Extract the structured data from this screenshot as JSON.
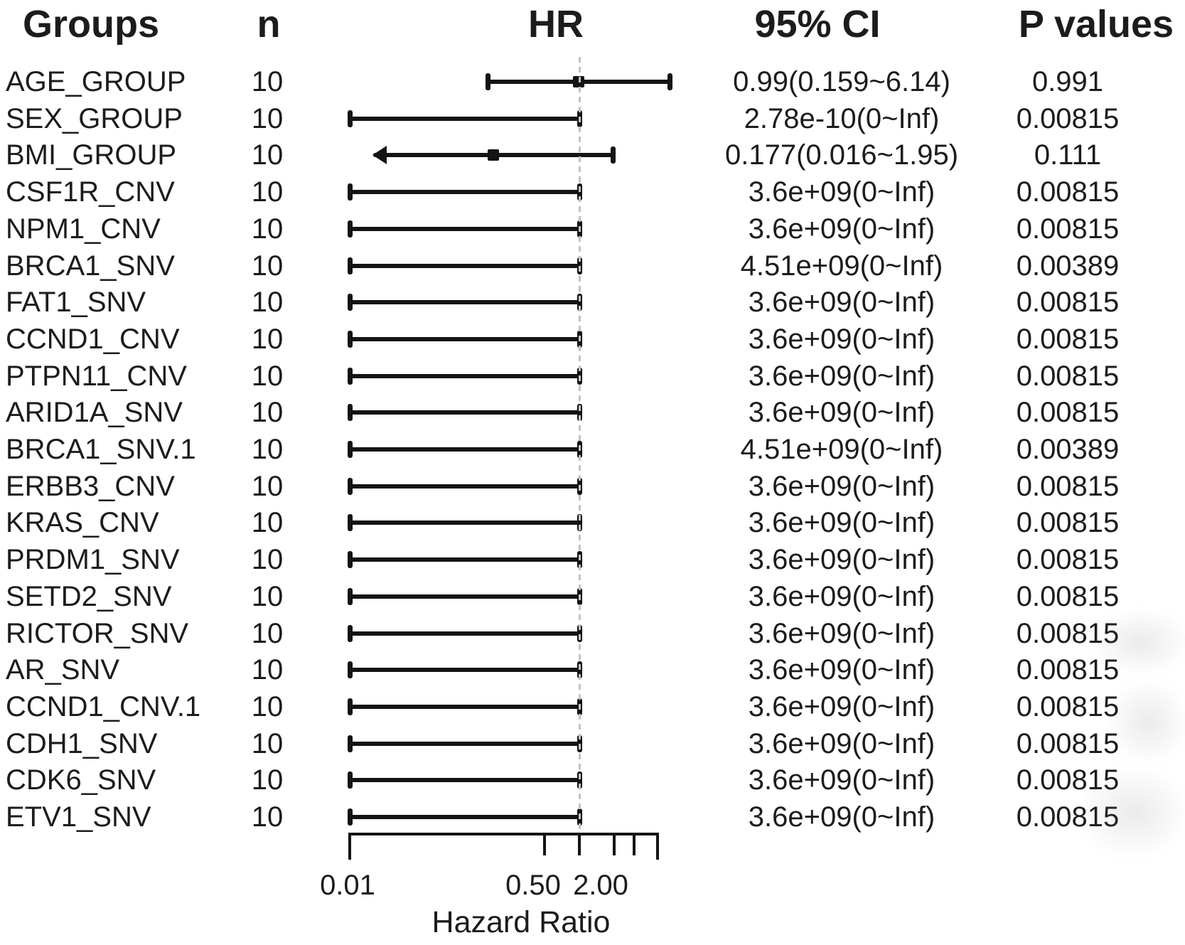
{
  "header": {
    "groups": "Groups",
    "n": "n",
    "hr": "HR",
    "ci": "95% CI",
    "p": "P values"
  },
  "chart_data": {
    "type": "forest",
    "x_scale": "log10",
    "xlabel": "Hazard Ratio",
    "reference_line": 1.0,
    "axis_range": [
      0.01,
      4.8
    ],
    "axis_ticks": [
      {
        "value": 0.01,
        "label": "0.01",
        "endcap": true,
        "label_dx": -3
      },
      {
        "value": 0.5,
        "label": "0.50",
        "label_dx": -16
      },
      {
        "value": 1.0
      },
      {
        "value": 2.0,
        "label": "2.00",
        "label_dx": -19
      },
      {
        "value": 3.0
      },
      {
        "value": 4.8,
        "endcap": true
      }
    ],
    "rows": [
      {
        "group": "AGE_GROUP",
        "n": "10",
        "hr": "0.99",
        "ci_low": "0.159",
        "ci_high": "6.14",
        "ci": "0.99(0.159~6.14)",
        "p": "0.991",
        "bar": {
          "from": 0.159,
          "to": 6.14,
          "marker": 0.99,
          "left": "cap",
          "right": "cap"
        }
      },
      {
        "group": "SEX_GROUP",
        "n": "10",
        "hr": "2.78e-10",
        "ci_low": "0",
        "ci_high": "Inf",
        "ci": "2.78e-10(0~Inf)",
        "p": "0.00815",
        "bar": {
          "from": 0.01,
          "to": 1.0,
          "left": "cap",
          "right": "cap"
        }
      },
      {
        "group": "BMI_GROUP",
        "n": "10",
        "hr": "0.177",
        "ci_low": "0.016",
        "ci_high": "1.95",
        "ci": "0.177(0.016~1.95)",
        "p": "0.111",
        "bar": {
          "from": 0.016,
          "to": 1.95,
          "marker": 0.177,
          "left": "arrow",
          "right": "cap"
        }
      },
      {
        "group": "CSF1R_CNV",
        "n": "10",
        "hr": "3.6e+09",
        "ci_low": "0",
        "ci_high": "Inf",
        "ci": "3.6e+09(0~Inf)",
        "p": "0.00815",
        "bar": {
          "from": 0.01,
          "to": 1.0,
          "left": "cap",
          "right": "cap"
        }
      },
      {
        "group": "NPM1_CNV",
        "n": "10",
        "hr": "3.6e+09",
        "ci_low": "0",
        "ci_high": "Inf",
        "ci": "3.6e+09(0~Inf)",
        "p": "0.00815",
        "bar": {
          "from": 0.01,
          "to": 1.0,
          "left": "cap",
          "right": "cap"
        }
      },
      {
        "group": "BRCA1_SNV",
        "n": "10",
        "hr": "4.51e+09",
        "ci_low": "0",
        "ci_high": "Inf",
        "ci": "4.51e+09(0~Inf)",
        "p": "0.00389",
        "bar": {
          "from": 0.01,
          "to": 1.0,
          "left": "cap",
          "right": "cap"
        }
      },
      {
        "group": "FAT1_SNV",
        "n": "10",
        "hr": "3.6e+09",
        "ci_low": "0",
        "ci_high": "Inf",
        "ci": "3.6e+09(0~Inf)",
        "p": "0.00815",
        "bar": {
          "from": 0.01,
          "to": 1.0,
          "left": "cap",
          "right": "cap"
        }
      },
      {
        "group": "CCND1_CNV",
        "n": "10",
        "hr": "3.6e+09",
        "ci_low": "0",
        "ci_high": "Inf",
        "ci": "3.6e+09(0~Inf)",
        "p": "0.00815",
        "bar": {
          "from": 0.01,
          "to": 1.0,
          "left": "cap",
          "right": "cap"
        }
      },
      {
        "group": "PTPN11_CNV",
        "n": "10",
        "hr": "3.6e+09",
        "ci_low": "0",
        "ci_high": "Inf",
        "ci": "3.6e+09(0~Inf)",
        "p": "0.00815",
        "bar": {
          "from": 0.01,
          "to": 1.0,
          "left": "cap",
          "right": "cap"
        }
      },
      {
        "group": "ARID1A_SNV",
        "n": "10",
        "hr": "3.6e+09",
        "ci_low": "0",
        "ci_high": "Inf",
        "ci": "3.6e+09(0~Inf)",
        "p": "0.00815",
        "bar": {
          "from": 0.01,
          "to": 1.0,
          "left": "cap",
          "right": "cap"
        }
      },
      {
        "group": "BRCA1_SNV.1",
        "n": "10",
        "hr": "4.51e+09",
        "ci_low": "0",
        "ci_high": "Inf",
        "ci": "4.51e+09(0~Inf)",
        "p": "0.00389",
        "bar": {
          "from": 0.01,
          "to": 1.0,
          "left": "cap",
          "right": "cap"
        }
      },
      {
        "group": "ERBB3_CNV",
        "n": "10",
        "hr": "3.6e+09",
        "ci_low": "0",
        "ci_high": "Inf",
        "ci": "3.6e+09(0~Inf)",
        "p": "0.00815",
        "bar": {
          "from": 0.01,
          "to": 1.0,
          "left": "cap",
          "right": "cap"
        }
      },
      {
        "group": "KRAS_CNV",
        "n": "10",
        "hr": "3.6e+09",
        "ci_low": "0",
        "ci_high": "Inf",
        "ci": "3.6e+09(0~Inf)",
        "p": "0.00815",
        "bar": {
          "from": 0.01,
          "to": 1.0,
          "left": "cap",
          "right": "cap"
        }
      },
      {
        "group": "PRDM1_SNV",
        "n": "10",
        "hr": "3.6e+09",
        "ci_low": "0",
        "ci_high": "Inf",
        "ci": "3.6e+09(0~Inf)",
        "p": "0.00815",
        "bar": {
          "from": 0.01,
          "to": 1.0,
          "left": "cap",
          "right": "cap"
        }
      },
      {
        "group": "SETD2_SNV",
        "n": "10",
        "hr": "3.6e+09",
        "ci_low": "0",
        "ci_high": "Inf",
        "ci": "3.6e+09(0~Inf)",
        "p": "0.00815",
        "bar": {
          "from": 0.01,
          "to": 1.0,
          "left": "cap",
          "right": "cap"
        }
      },
      {
        "group": "RICTOR_SNV",
        "n": "10",
        "hr": "3.6e+09",
        "ci_low": "0",
        "ci_high": "Inf",
        "ci": "3.6e+09(0~Inf)",
        "p": "0.00815",
        "bar": {
          "from": 0.01,
          "to": 1.0,
          "left": "cap",
          "right": "cap"
        }
      },
      {
        "group": "AR_SNV",
        "n": "10",
        "hr": "3.6e+09",
        "ci_low": "0",
        "ci_high": "Inf",
        "ci": "3.6e+09(0~Inf)",
        "p": "0.00815",
        "bar": {
          "from": 0.01,
          "to": 1.0,
          "left": "cap",
          "right": "cap"
        }
      },
      {
        "group": "CCND1_CNV.1",
        "n": "10",
        "hr": "3.6e+09",
        "ci_low": "0",
        "ci_high": "Inf",
        "ci": "3.6e+09(0~Inf)",
        "p": "0.00815",
        "bar": {
          "from": 0.01,
          "to": 1.0,
          "left": "cap",
          "right": "cap"
        }
      },
      {
        "group": "CDH1_SNV",
        "n": "10",
        "hr": "3.6e+09",
        "ci_low": "0",
        "ci_high": "Inf",
        "ci": "3.6e+09(0~Inf)",
        "p": "0.00815",
        "bar": {
          "from": 0.01,
          "to": 1.0,
          "left": "cap",
          "right": "cap"
        }
      },
      {
        "group": "CDK6_SNV",
        "n": "10",
        "hr": "3.6e+09",
        "ci_low": "0",
        "ci_high": "Inf",
        "ci": "3.6e+09(0~Inf)",
        "p": "0.00815",
        "bar": {
          "from": 0.01,
          "to": 1.0,
          "left": "cap",
          "right": "cap"
        }
      },
      {
        "group": "ETV1_SNV",
        "n": "10",
        "hr": "3.6e+09",
        "ci_low": "0",
        "ci_high": "Inf",
        "ci": "3.6e+09(0~Inf)",
        "p": "0.00815",
        "bar": {
          "from": 0.01,
          "to": 1.0,
          "left": "cap",
          "right": "cap"
        }
      }
    ]
  },
  "colors": {
    "ink": "#1c1c1c",
    "bar": "#141414",
    "reference_line": "#c3c3c3"
  }
}
